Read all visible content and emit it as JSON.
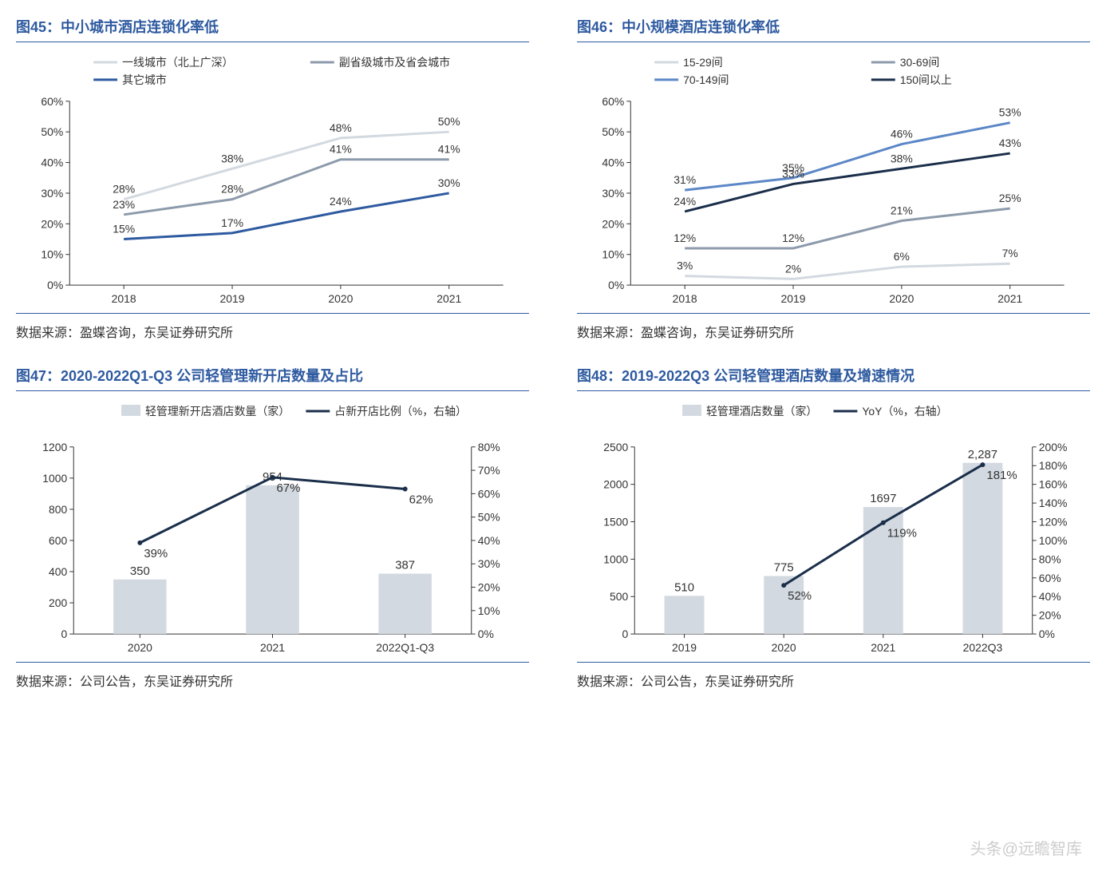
{
  "watermark": "头条@远瞻智库",
  "charts": {
    "c45": {
      "title": "图45：中小城市酒店连锁化率低",
      "source": "数据来源：盈蝶咨询，东吴证券研究所",
      "type": "line",
      "categories": [
        "2018",
        "2019",
        "2020",
        "2021"
      ],
      "ylim": [
        0,
        60
      ],
      "ytick_step": 10,
      "y_suffix": "%",
      "series": [
        {
          "name": "一线城市（北上广深）",
          "color": "#d3d9e0",
          "width": 3,
          "values": [
            28,
            38,
            48,
            50
          ],
          "labels": [
            "28%",
            "38%",
            "48%",
            "50%"
          ]
        },
        {
          "name": "副省级城市及省会城市",
          "color": "#8c9aab",
          "width": 3,
          "values": [
            23,
            28,
            41,
            41
          ],
          "labels": [
            "23%",
            "28%",
            "41%",
            "41%"
          ]
        },
        {
          "name": "其它城市",
          "color": "#2e5aa0",
          "width": 3,
          "values": [
            15,
            17,
            24,
            30
          ],
          "labels": [
            "15%",
            "17%",
            "24%",
            "30%"
          ]
        }
      ],
      "legend_cols": 2,
      "axis_color": "#333",
      "label_fontsize": 16,
      "tick_fontsize": 14
    },
    "c46": {
      "title": "图46：中小规模酒店连锁化率低",
      "source": "数据来源：盈蝶咨询，东吴证券研究所",
      "type": "line",
      "categories": [
        "2018",
        "2019",
        "2020",
        "2021"
      ],
      "ylim": [
        0,
        60
      ],
      "ytick_step": 10,
      "y_suffix": "%",
      "series": [
        {
          "name": "15-29间",
          "color": "#d3d9e0",
          "width": 3,
          "values": [
            3,
            2,
            6,
            7
          ],
          "labels": [
            "3%",
            "2%",
            "6%",
            "7%"
          ]
        },
        {
          "name": "30-69间",
          "color": "#8c9aab",
          "width": 3,
          "values": [
            12,
            12,
            21,
            25
          ],
          "labels": [
            "12%",
            "12%",
            "21%",
            "25%"
          ]
        },
        {
          "name": "70-149间",
          "color": "#5b87c7",
          "width": 3,
          "values": [
            31,
            35,
            46,
            53
          ],
          "labels": [
            "31%",
            "35%",
            "46%",
            "53%"
          ]
        },
        {
          "name": "150间以上",
          "color": "#1a2e4a",
          "width": 3,
          "values": [
            24,
            33,
            38,
            43
          ],
          "labels": [
            "24%",
            "33%",
            "38%",
            "43%"
          ]
        }
      ],
      "legend_cols": 2,
      "axis_color": "#333",
      "label_fontsize": 16,
      "tick_fontsize": 14
    },
    "c47": {
      "title": "图47：2020-2022Q1-Q3 公司轻管理新开店数量及占比",
      "source": "数据来源：公司公告，东吴证券研究所",
      "type": "combo",
      "categories": [
        "2020",
        "2021",
        "2022Q1-Q3"
      ],
      "ylim": [
        0,
        1200
      ],
      "ytick_step": 200,
      "y2lim": [
        0,
        80
      ],
      "y2tick_step": 10,
      "y2_suffix": "%",
      "bar": {
        "name": "轻管理新开店酒店数量（家）",
        "color": "#d3d9e0",
        "width": 0.4,
        "values": [
          350,
          954,
          387
        ],
        "labels": [
          "350",
          "954",
          "387"
        ]
      },
      "line": {
        "name": "占新开店比例（%，右轴）",
        "color": "#1a2e4a",
        "width": 3,
        "values": [
          39,
          67,
          62
        ],
        "labels": [
          "39%",
          "67%",
          "62%"
        ]
      },
      "axis_color": "#333",
      "label_fontsize": 16,
      "tick_fontsize": 14
    },
    "c48": {
      "title": "图48：2019-2022Q3 公司轻管理酒店数量及增速情况",
      "source": "数据来源：公司公告，东吴证券研究所",
      "type": "combo",
      "categories": [
        "2019",
        "2020",
        "2021",
        "2022Q3"
      ],
      "ylim": [
        0,
        2500
      ],
      "ytick_step": 500,
      "y2lim": [
        0,
        200
      ],
      "y2tick_step": 20,
      "y2_suffix": "%",
      "bar": {
        "name": "轻管理酒店数量（家）",
        "color": "#d3d9e0",
        "width": 0.4,
        "values": [
          510,
          775,
          1697,
          2287
        ],
        "labels": [
          "510",
          "775",
          "1697",
          "2,287"
        ]
      },
      "line": {
        "name": "YoY（%，右轴）",
        "color": "#1a2e4a",
        "width": 3,
        "values": [
          null,
          52,
          119,
          181
        ],
        "labels": [
          null,
          "52%",
          "119%",
          "181%"
        ]
      },
      "axis_color": "#333",
      "label_fontsize": 16,
      "tick_fontsize": 14
    }
  }
}
